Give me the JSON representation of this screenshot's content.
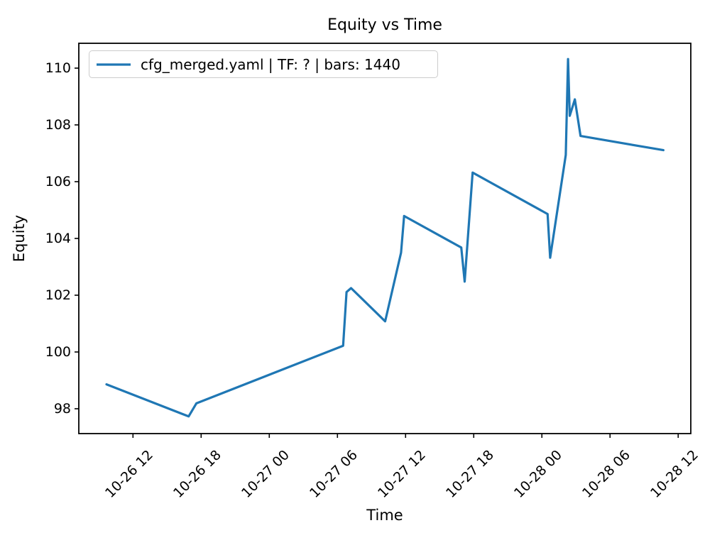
{
  "title": "Equity vs Time",
  "legend": {
    "label": "cfg_merged.yaml | TF: ? | bars: 1440"
  },
  "chart_data": {
    "type": "line",
    "title": "Equity vs Time",
    "xlabel": "Time",
    "ylabel": "Equity",
    "grid": false,
    "legend_position": "upper left",
    "line_color": "#1f77b4",
    "axis_color": "#000000",
    "x_origin": "10-26 12:00",
    "xlim_hours": [
      -4.77,
      49.11
    ],
    "ylim": [
      97.125,
      110.875
    ],
    "y_ticks": [
      98,
      100,
      102,
      104,
      106,
      108,
      110
    ],
    "x_ticks": [
      {
        "hours": 0,
        "label": "10-26 12"
      },
      {
        "hours": 6,
        "label": "10-26 18"
      },
      {
        "hours": 12,
        "label": "10-27 00"
      },
      {
        "hours": 18,
        "label": "10-27 06"
      },
      {
        "hours": 24,
        "label": "10-27 12"
      },
      {
        "hours": 30,
        "label": "10-27 18"
      },
      {
        "hours": 36,
        "label": "10-28 00"
      },
      {
        "hours": 42,
        "label": "10-28 06"
      },
      {
        "hours": 48,
        "label": "10-28 12"
      }
    ],
    "series": [
      {
        "name": "cfg_merged.yaml | TF: ? | bars: 1440",
        "points": [
          {
            "time": "10-26 09:40",
            "hours": -2.33,
            "equity": 98.86
          },
          {
            "time": "10-26 16:55",
            "hours": 4.9,
            "equity": 97.73
          },
          {
            "time": "10-26 17:35",
            "hours": 5.58,
            "equity": 98.19
          },
          {
            "time": "10-27 06:30",
            "hours": 18.5,
            "equity": 100.22
          },
          {
            "time": "10-27 06:50",
            "hours": 18.8,
            "equity": 102.11
          },
          {
            "time": "10-27 07:10",
            "hours": 19.2,
            "equity": 102.25
          },
          {
            "time": "10-27 10:10",
            "hours": 22.2,
            "equity": 101.08
          },
          {
            "time": "10-27 11:35",
            "hours": 23.6,
            "equity": 103.5
          },
          {
            "time": "10-27 11:50",
            "hours": 23.87,
            "equity": 104.79
          },
          {
            "time": "10-27 16:55",
            "hours": 28.9,
            "equity": 103.68
          },
          {
            "time": "10-27 17:10",
            "hours": 29.2,
            "equity": 102.48
          },
          {
            "time": "10-27 17:55",
            "hours": 29.9,
            "equity": 106.32
          },
          {
            "time": "10-28 00:30",
            "hours": 36.5,
            "equity": 104.86
          },
          {
            "time": "10-28 00:45",
            "hours": 36.73,
            "equity": 103.32
          },
          {
            "time": "10-28 02:05",
            "hours": 38.1,
            "equity": 106.94
          },
          {
            "time": "10-28 02:20",
            "hours": 38.3,
            "equity": 110.32
          },
          {
            "time": "10-28 02:25",
            "hours": 38.45,
            "equity": 108.32
          },
          {
            "time": "10-28 02:55",
            "hours": 38.9,
            "equity": 108.9
          },
          {
            "time": "10-28 03:25",
            "hours": 39.4,
            "equity": 107.61
          },
          {
            "time": "10-28 10:40",
            "hours": 46.7,
            "equity": 107.11
          }
        ]
      }
    ]
  }
}
